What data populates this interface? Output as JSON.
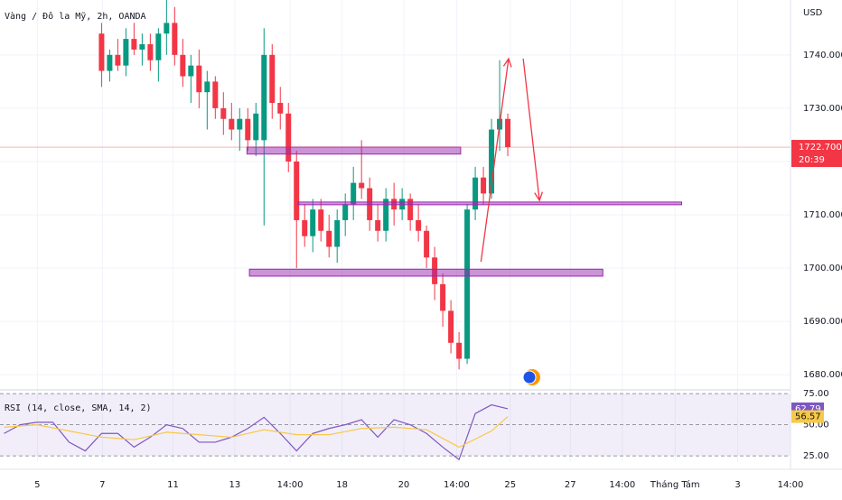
{
  "chart_data": {
    "type": "candlestick",
    "title": "Vàng / Đô la Mỹ, 2h, OANDA",
    "currency": "USD",
    "up_color": "#089981",
    "down_color": "#f23645",
    "x": [
      12,
      13,
      14,
      15,
      16,
      17,
      18,
      19,
      20,
      21,
      22,
      23,
      24,
      25,
      26,
      27,
      28,
      29,
      30,
      31,
      32,
      33,
      34,
      35,
      36,
      37,
      38,
      39,
      40,
      41,
      42,
      43,
      44,
      45,
      46,
      47,
      48,
      49,
      50,
      51,
      52,
      53,
      54,
      55,
      56,
      57,
      58,
      59,
      60,
      61,
      62
    ],
    "open": [
      1744,
      1737,
      1740,
      1738,
      1743,
      1741,
      1742,
      1739,
      1744,
      1746,
      1740,
      1736,
      1738,
      1733,
      1735,
      1730,
      1728,
      1726,
      1728,
      1724,
      1724,
      1740,
      1731,
      1729,
      1720,
      1709,
      1706,
      1711,
      1707,
      1704,
      1709,
      1712,
      1716,
      1715,
      1709,
      1707,
      1713,
      1711,
      1713,
      1709,
      1707,
      1702,
      1697,
      1692,
      1686,
      1683,
      1711,
      1717,
      1714,
      1726,
      1728
    ],
    "high": [
      1746,
      1741,
      1743,
      1745,
      1746,
      1744,
      1744,
      1745,
      1751,
      1749,
      1743,
      1740,
      1741,
      1737,
      1736,
      1733,
      1731,
      1730,
      1730,
      1731,
      1745,
      1742,
      1734,
      1731,
      1722,
      1712,
      1713,
      1713,
      1710,
      1711,
      1714,
      1719,
      1724,
      1717,
      1712,
      1715,
      1716,
      1715,
      1714,
      1712,
      1708,
      1704,
      1699,
      1694,
      1688,
      1712,
      1719,
      1719,
      1728,
      1739,
      1729
    ],
    "low": [
      1734,
      1735,
      1737,
      1736,
      1740,
      1738,
      1737,
      1735,
      1740,
      1738,
      1734,
      1731,
      1730,
      1726,
      1728,
      1725,
      1724,
      1722,
      1722,
      1721,
      1708,
      1728,
      1726,
      1718,
      1700,
      1704,
      1703,
      1705,
      1702,
      1701,
      1706,
      1709,
      1713,
      1707,
      1705,
      1705,
      1708,
      1709,
      1707,
      1705,
      1700,
      1694,
      1689,
      1684,
      1681,
      1682,
      1709,
      1712,
      1713,
      1722,
      1721
    ],
    "close": [
      1737,
      1740,
      1738,
      1743,
      1741,
      1742,
      1739,
      1744,
      1746,
      1740,
      1736,
      1738,
      1733,
      1735,
      1730,
      1728,
      1726,
      1728,
      1724,
      1729,
      1740,
      1731,
      1729,
      1720,
      1709,
      1706,
      1711,
      1707,
      1704,
      1709,
      1712,
      1716,
      1715,
      1709,
      1707,
      1713,
      1711,
      1713,
      1709,
      1707,
      1702,
      1697,
      1692,
      1686,
      1683,
      1711,
      1717,
      1714,
      1726,
      1728,
      1722.7
    ],
    "last_price": {
      "value": 1722.7,
      "label": "1722.700",
      "countdown": "20:39"
    },
    "xlim": [
      -0.5,
      96.8
    ],
    "xticks": [
      {
        "value": 4.1,
        "label": "5"
      },
      {
        "value": 12.1,
        "label": "7"
      },
      {
        "value": 20.8,
        "label": "11"
      },
      {
        "value": 28.4,
        "label": "13"
      },
      {
        "value": 35.2,
        "label": "14:00"
      },
      {
        "value": 41.6,
        "label": "18"
      },
      {
        "value": 49.2,
        "label": "20"
      },
      {
        "value": 55.7,
        "label": "14:00"
      },
      {
        "value": 62.3,
        "label": "25"
      },
      {
        "value": 69.7,
        "label": "27"
      },
      {
        "value": 76.1,
        "label": "14:00"
      },
      {
        "value": 82.6,
        "label": "Tháng Tám"
      },
      {
        "value": 90.3,
        "label": "3"
      },
      {
        "value": 96.8,
        "label": "14:00"
      }
    ],
    "ylim": [
      1677.5,
      1750.3
    ],
    "yticks": [
      {
        "value": 1680,
        "label": "1680.000"
      },
      {
        "value": 1690,
        "label": "1690.000"
      },
      {
        "value": 1700,
        "label": "1700.000"
      },
      {
        "value": 1710,
        "label": "1710.000"
      },
      {
        "value": 1720,
        "label": "1720.000"
      },
      {
        "value": 1730,
        "label": "1730.000"
      },
      {
        "value": 1740,
        "label": "1740.000"
      }
    ],
    "grid": true,
    "drawings": {
      "zones": [
        {
          "x": [
            29.9,
            56.2
          ],
          "y": [
            1721.4,
            1722.7
          ],
          "color": "#9c27b0"
        },
        {
          "x": [
            30.2,
            73.7
          ],
          "y": [
            1698.5,
            1699.8
          ],
          "color": "#9c27b0"
        },
        {
          "x": [
            36.2,
            83.4
          ],
          "y": [
            1711.9,
            1712.4
          ],
          "color": "#9c27b0"
        }
      ],
      "arrows": [
        {
          "x": [
            58.7,
            62.1
          ],
          "y": [
            1701.2,
            1739.3
          ],
          "color": "#f23645"
        },
        {
          "x": [
            63.9,
            65.9
          ],
          "y": [
            1739.3,
            1712.7
          ],
          "color": "#f23645"
        }
      ]
    },
    "indicator": {
      "type": "line",
      "title": "RSI (14, close, SMA, 14, 2)",
      "ylim": [
        20,
        78
      ],
      "yticks": [
        {
          "value": 25,
          "label": "25.00"
        },
        {
          "value": 50,
          "label": "50.00"
        },
        {
          "value": 75,
          "label": "75.00"
        }
      ],
      "series": [
        {
          "color": "#7e57c2",
          "x": [
            0,
            2,
            4,
            6,
            8,
            10,
            12,
            14,
            16,
            18,
            20,
            22,
            24,
            26,
            28,
            30,
            32,
            34,
            36,
            38,
            40,
            42,
            44,
            46,
            48,
            50,
            52,
            54,
            56,
            58,
            60,
            62
          ],
          "values": [
            43,
            50,
            52,
            52,
            36,
            29,
            43,
            43,
            32,
            40,
            50,
            47,
            36,
            36,
            40,
            47,
            56,
            43,
            29,
            43,
            47,
            50,
            54,
            40,
            54,
            50,
            43,
            32,
            22,
            59,
            66,
            62.79
          ]
        },
        {
          "color": "#f7c948",
          "x": [
            0,
            4,
            8,
            12,
            16,
            20,
            24,
            28,
            32,
            36,
            40,
            44,
            48,
            52,
            56,
            60,
            62
          ],
          "values": [
            48,
            50,
            45,
            40,
            38,
            44,
            42,
            40,
            46,
            42,
            42,
            47,
            48,
            46,
            32,
            45,
            56.57
          ]
        }
      ]
    }
  }
}
